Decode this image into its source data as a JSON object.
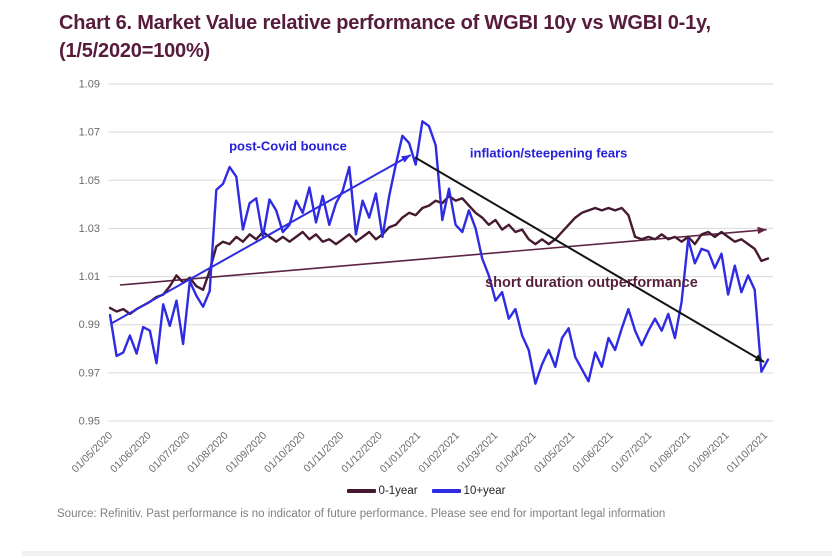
{
  "title": {
    "text": "Chart 6. Market Value relative performance of WGBI 10y vs WGBI 0-1y, (1/5/2020=100%)"
  },
  "source": {
    "text": "Source: Refinitiv. Past performance is no indicator of future performance. Please see end for important legal information"
  },
  "colors": {
    "title": "#571C3C",
    "gridline": "#D9D9D9",
    "axis_label": "#6A6A6A",
    "legend_text": "#262626",
    "source_text": "#808080",
    "series_0_1year": "#451A30",
    "series_10year": "#2E2BE3",
    "trend_maroon": "#5C2442",
    "trend_blue": "#2E2BE3",
    "trend_black": "#141414",
    "annotation_blue": "#2620D6",
    "annotation_maroon": "#571F3A",
    "bottom_bar": "#F1F1F1"
  },
  "chart_data": {
    "type": "line",
    "title": "Chart 6. Market Value relative performance of WGBI 10y vs WGBI 0-1y, (1/5/2020=100%)",
    "xlabel": "",
    "ylabel": "",
    "ylim": [
      0.95,
      1.09
    ],
    "grid": "horizontal",
    "legend_position": "bottom",
    "y_ticks": [
      "1.09",
      "1.07",
      "1.05",
      "1.03",
      "1.01",
      "0.99",
      "0.97",
      "0.95"
    ],
    "x_labels": [
      "01/05/2020",
      "01/06/2020",
      "01/07/2020",
      "01/08/2020",
      "01/09/2020",
      "01/10/2020",
      "01/11/2020",
      "01/12/2020",
      "01/01/2021",
      "01/02/2021",
      "01/03/2021",
      "01/04/2021",
      "01/05/2021",
      "01/06/2021",
      "01/07/2021",
      "01/08/2021",
      "01/09/2021",
      "01/10/2021"
    ],
    "series": [
      {
        "name": "0-1year",
        "color": "#451A30",
        "width": 2.4,
        "values": [
          0.997,
          0.9955,
          0.9965,
          0.9945,
          0.9965,
          0.998,
          0.9995,
          1.0015,
          1.0025,
          1.006,
          1.0105,
          1.0075,
          1.0095,
          1.006,
          1.0045,
          1.0125,
          1.0225,
          1.0245,
          1.0235,
          1.0265,
          1.0245,
          1.0275,
          1.0255,
          1.0285,
          1.0265,
          1.0245,
          1.0265,
          1.0245,
          1.0265,
          1.0285,
          1.0255,
          1.0275,
          1.0245,
          1.0255,
          1.0235,
          1.0255,
          1.0275,
          1.0245,
          1.0265,
          1.0285,
          1.0255,
          1.0275,
          1.0305,
          1.0315,
          1.0345,
          1.0365,
          1.0355,
          1.0385,
          1.0395,
          1.0415,
          1.0405,
          1.0435,
          1.0415,
          1.0425,
          1.0395,
          1.0365,
          1.0345,
          1.0315,
          1.0335,
          1.0295,
          1.0315,
          1.0285,
          1.0295,
          1.0255,
          1.0235,
          1.0255,
          1.0235,
          1.0255,
          1.0285,
          1.0315,
          1.0345,
          1.0365,
          1.0375,
          1.0385,
          1.0375,
          1.0385,
          1.0375,
          1.0385,
          1.0355,
          1.0265,
          1.0255,
          1.0265,
          1.0255,
          1.0275,
          1.0255,
          1.0265,
          1.0245,
          1.0265,
          1.0235,
          1.0275,
          1.0285,
          1.0265,
          1.0285,
          1.0265,
          1.0245,
          1.0255,
          1.0235,
          1.0215,
          1.0165,
          1.0175
        ]
      },
      {
        "name": "10+year",
        "color": "#2E2BE3",
        "width": 2.4,
        "values": [
          0.994,
          0.977,
          0.9785,
          0.9855,
          0.978,
          0.989,
          0.9875,
          0.974,
          0.9985,
          0.9895,
          1.0,
          0.982,
          1.008,
          1.002,
          0.9975,
          1.004,
          1.046,
          1.0485,
          1.0555,
          1.0515,
          1.0295,
          1.0405,
          1.0425,
          1.0265,
          1.042,
          1.0375,
          1.0285,
          1.0315,
          1.0415,
          1.0365,
          1.047,
          1.0325,
          1.0435,
          1.0315,
          1.0405,
          1.0455,
          1.0555,
          1.0275,
          1.0415,
          1.0345,
          1.0445,
          1.0265,
          1.0435,
          1.0565,
          1.0685,
          1.0655,
          1.0565,
          1.0745,
          1.0725,
          1.0645,
          1.0335,
          1.0465,
          1.0315,
          1.0285,
          1.0375,
          1.03,
          1.0175,
          1.0105,
          1.0,
          1.0035,
          0.9925,
          0.9965,
          0.9855,
          0.9795,
          0.9655,
          0.9735,
          0.9795,
          0.9725,
          0.9845,
          0.9885,
          0.9765,
          0.9715,
          0.9665,
          0.9785,
          0.9725,
          0.9845,
          0.9795,
          0.9885,
          0.9965,
          0.9875,
          0.9815,
          0.9875,
          0.9925,
          0.9875,
          0.9945,
          0.9845,
          0.9995,
          1.0255,
          1.0155,
          1.0215,
          1.0205,
          1.0135,
          1.0195,
          1.0025,
          1.0145,
          1.0035,
          1.0105,
          1.0045,
          0.9705,
          0.9755
        ]
      }
    ],
    "trend_arrows": [
      {
        "name": "post-covid-uptrend",
        "color": "#2E2BE3",
        "width": 2.0,
        "x1": 0.002,
        "v1": 0.9905,
        "x2": 0.457,
        "v2": 1.0605
      },
      {
        "name": "short-duration-uptrend",
        "color": "#5C2442",
        "width": 1.6,
        "x1": 0.015,
        "v1": 1.0065,
        "x2": 0.998,
        "v2": 1.0295
      },
      {
        "name": "steepening-downtrend",
        "color": "#141414",
        "width": 2.0,
        "x1": 0.4635,
        "v1": 1.0595,
        "x2": 0.994,
        "v2": 0.9745
      }
    ],
    "annotations": [
      {
        "text": "post-Covid bounce",
        "color": "#2620D6",
        "size": 13,
        "x": 0.181,
        "v": 1.0642
      },
      {
        "text": "inflation/steepening fears",
        "color": "#2620D6",
        "size": 13,
        "x": 0.547,
        "v": 1.0613
      },
      {
        "text": "short duration outperformance",
        "color": "#571F3A",
        "size": 14.5,
        "x": 0.57,
        "v": 1.0078
      }
    ]
  }
}
